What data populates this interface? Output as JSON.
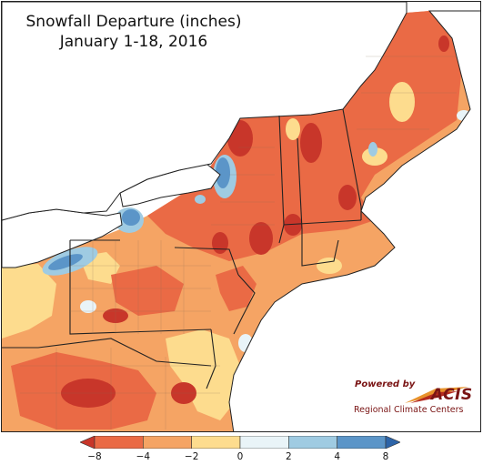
{
  "title": {
    "line1": "Snowfall Departure (inches)",
    "line2": "January 1-18, 2016"
  },
  "legend": {
    "unit": "inches",
    "ticks": [
      "−8",
      "−4",
      "−2",
      "0",
      "2",
      "4",
      "8"
    ],
    "bins": [
      {
        "from": "below -8",
        "color": "#c8362a"
      },
      {
        "from": "-8 to -4",
        "color": "#ea6a45"
      },
      {
        "from": "-4 to -2",
        "color": "#f5a464"
      },
      {
        "from": "-2 to 0",
        "color": "#fddc8e"
      },
      {
        "from": "0 to 2",
        "color": "#e9f4f8"
      },
      {
        "from": "2 to 4",
        "color": "#9fcbe2"
      },
      {
        "from": "4 to 8",
        "color": "#5b95c8"
      },
      {
        "from": "above 8",
        "color": "#2d64a8"
      }
    ]
  },
  "logo": {
    "powered_by": "Powered by",
    "brand": "ACIS",
    "subtitle": "Regional Climate Centers"
  },
  "colors": {
    "lake": "#ffffff",
    "border": "#222222",
    "county_lines": "#8a6a55"
  }
}
